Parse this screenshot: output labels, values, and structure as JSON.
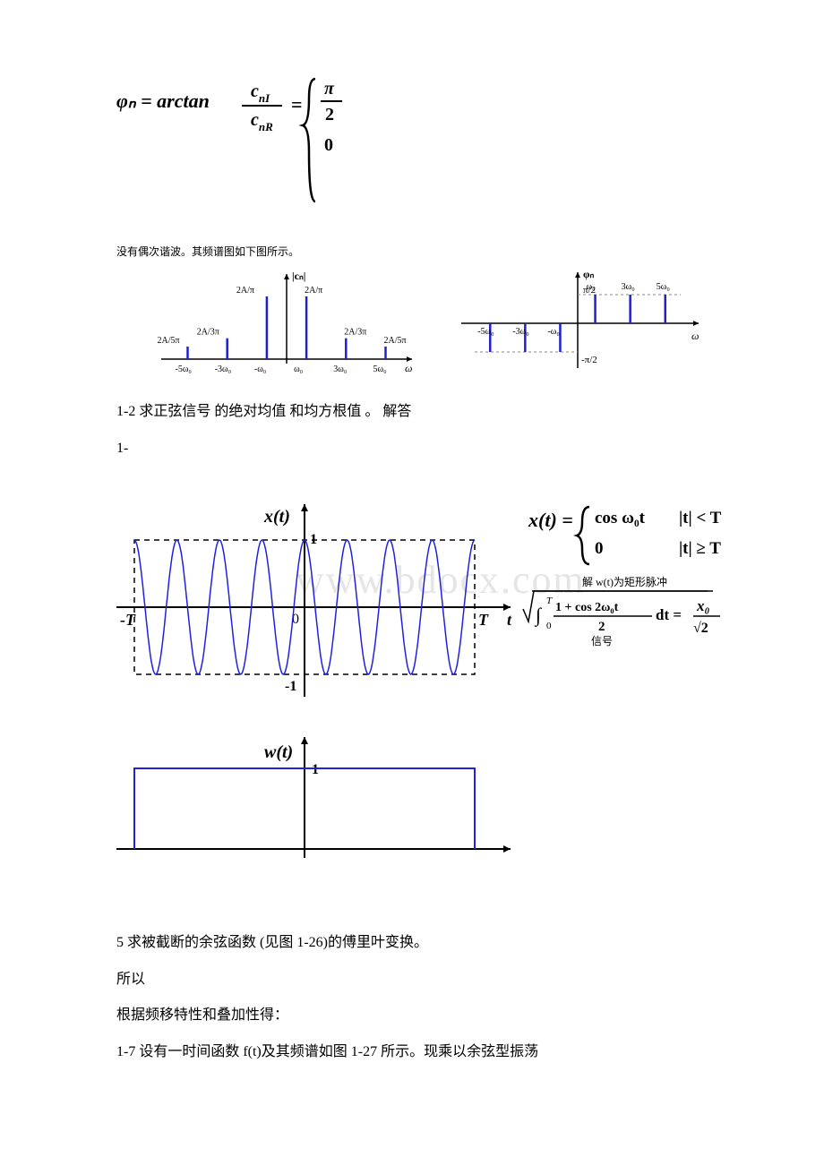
{
  "eq1": {
    "lhs": "φₙ = arctan",
    "frac_num": "c",
    "frac_num_sub": "nI",
    "frac_den": "c",
    "frac_den_sub": "nR",
    "eq": "=",
    "brace_top": "π",
    "brace_top_den": "2",
    "brace_bottom": "0"
  },
  "caption1": "没有偶次谐波。其频谱图如下图所示。",
  "magSpectrum": {
    "ylabel": "|cₙ|",
    "xlabel": "ω",
    "ticks": [
      "-5ω₀",
      "-3ω₀",
      "-ω₀",
      "ω₀",
      "3ω₀",
      "5ω₀"
    ],
    "barLabels": [
      "2A/5π",
      "2A/3π",
      "2A/π",
      "2A/π",
      "2A/3π",
      "2A/5π"
    ],
    "heights": [
      0.2,
      0.333,
      1,
      1,
      0.333,
      0.2
    ],
    "axisColor": "#000",
    "barColor": "#2020d0"
  },
  "phaseSpectrum": {
    "ylabel": "φₙ",
    "xlabel": "ω",
    "ticksPos": [
      "ω₀",
      "3ω₀",
      "5ω₀"
    ],
    "ticksNeg": [
      "-5ω₀",
      "-3ω₀",
      "-ω₀"
    ],
    "posLabel": "π/2",
    "negLabel": "-π/2",
    "axisColor": "#000",
    "barColor": "#2020d0",
    "dashColor": "#888"
  },
  "para1_2": "1-2 求正弦信号 的绝对均值 和均方根值 。 解答",
  "para1_dash": "1-",
  "cosFig": {
    "xt_label": "x(t)",
    "one": "1",
    "minus_one": "-1",
    "zero": "0",
    "T": "T",
    "minusT": "-T",
    "t": "t",
    "x_axis_left_label": "x",
    "wt_label": "w(t)",
    "wt_one": "1",
    "waveColor": "#2020e0",
    "dashColor": "#000",
    "axisColor": "#000",
    "watermark": "www.bdocx.com"
  },
  "piecewise": {
    "lhs": "x(t) =",
    "line1_expr": "cos ω₀t",
    "line1_cond": "|t| < T",
    "line2_expr": "0",
    "line2_cond": "|t| ≥ T"
  },
  "rmsFormula": {
    "overline": "──────────",
    "sqrt_body": "∫",
    "upper": "T",
    "lower": "0",
    "frac_top": "1 + cos 2ω₀t",
    "frac_bot": "2",
    "dt": "dt =",
    "result_top": "x₀",
    "result_bot": "√2",
    "annot1": "解 w(t)为矩形脉冲",
    "annot2": "信号"
  },
  "para5": "5 求被截断的余弦函数 (见图 1-26)的傅里叶变换。",
  "para_so": "所以",
  "para_shift": "根据频移特性和叠加性得：",
  "para1_7": "1-7 设有一时间函数    f(t)及其频谱如图    1-27 所示。现乘以余弦型振荡"
}
